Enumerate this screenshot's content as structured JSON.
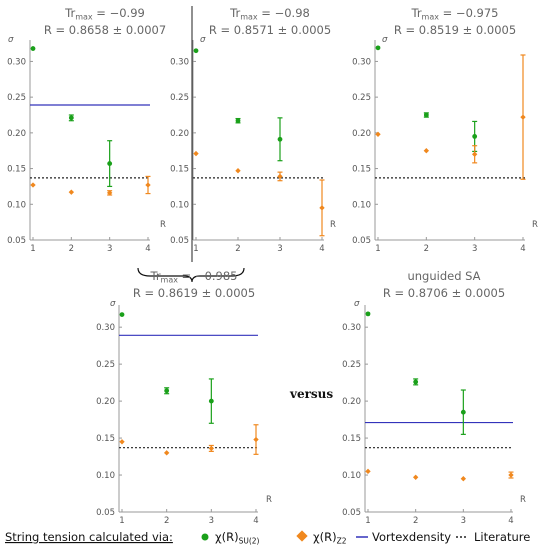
{
  "colors": {
    "su2": "#1aa01a",
    "z2": "#f0881e",
    "vortex": "#3333bb",
    "literature": "#222222",
    "axis": "#999999",
    "header": "#666666"
  },
  "versus_text": "versus",
  "legend": {
    "title": "String tension calculated via:",
    "su2_label": "χ(R)",
    "su2_sub": "SU(2)",
    "z2_label": "χ(R)",
    "z2_sub": "Z2",
    "vortex_label": "Vortexdensity",
    "literature_label": "Literature"
  },
  "chart_data": [
    {
      "type": "scatter",
      "header_tr": "Tr",
      "header_sub": "max",
      "header_value": " = −0.99",
      "header_r": "R = 0.8658 ± 0.0007",
      "ylabel": "σ",
      "xlabel": "R",
      "xlim": [
        1,
        4
      ],
      "ylim": [
        0.05,
        0.33
      ],
      "xticks": [
        "1",
        "2",
        "3",
        "4"
      ],
      "yticks": [
        "0.05",
        "0.10",
        "0.15",
        "0.20",
        "0.25",
        "0.30"
      ],
      "vortex": 0.239,
      "literature": 0.137,
      "series": [
        {
          "key": "su2",
          "points": [
            {
              "x": 1,
              "y": 0.318,
              "err": 0.001
            },
            {
              "x": 2,
              "y": 0.221,
              "err": 0.004
            },
            {
              "x": 3,
              "y": 0.157,
              "err": 0.032
            }
          ]
        },
        {
          "key": "z2",
          "points": [
            {
              "x": 1,
              "y": 0.127,
              "err": 0.001
            },
            {
              "x": 2,
              "y": 0.117,
              "err": 0.001
            },
            {
              "x": 3,
              "y": 0.116,
              "err": 0.003
            },
            {
              "x": 4,
              "y": 0.127,
              "err": 0.012
            }
          ]
        }
      ]
    },
    {
      "type": "scatter",
      "header_tr": "Tr",
      "header_sub": "max",
      "header_value": " = −0.98",
      "header_r": "R = 0.8571 ± 0.0005",
      "ylabel": "σ",
      "xlabel": "R",
      "xlim": [
        1,
        4
      ],
      "ylim": [
        0.05,
        0.33
      ],
      "xticks": [
        "1",
        "2",
        "3",
        "4"
      ],
      "yticks": [
        "0.05",
        "0.10",
        "0.15",
        "0.20",
        "0.25",
        "0.30"
      ],
      "vortex": null,
      "literature": 0.137,
      "series": [
        {
          "key": "su2",
          "points": [
            {
              "x": 1,
              "y": 0.315,
              "err": 0.001
            },
            {
              "x": 2,
              "y": 0.217,
              "err": 0.003
            },
            {
              "x": 3,
              "y": 0.191,
              "err": 0.03
            }
          ]
        },
        {
          "key": "z2",
          "points": [
            {
              "x": 1,
              "y": 0.171,
              "err": 0.001
            },
            {
              "x": 2,
              "y": 0.147,
              "err": 0.002
            },
            {
              "x": 3,
              "y": 0.139,
              "err": 0.006
            },
            {
              "x": 4,
              "y": 0.095,
              "err": 0.039
            }
          ]
        }
      ]
    },
    {
      "type": "scatter",
      "header_tr": "Tr",
      "header_sub": "max",
      "header_value": " = −0.975",
      "header_r": "R = 0.8519 ± 0.0005",
      "ylabel": "σ",
      "xlabel": "R",
      "xlim": [
        1,
        4
      ],
      "ylim": [
        0.05,
        0.33
      ],
      "xticks": [
        "1",
        "2",
        "3",
        "4"
      ],
      "yticks": [
        "0.05",
        "0.10",
        "0.15",
        "0.20",
        "0.25",
        "0.30"
      ],
      "vortex": null,
      "literature": 0.137,
      "series": [
        {
          "key": "su2",
          "points": [
            {
              "x": 1,
              "y": 0.319,
              "err": 0.001
            },
            {
              "x": 2,
              "y": 0.225,
              "err": 0.003
            },
            {
              "x": 3,
              "y": 0.195,
              "err": 0.021
            }
          ]
        },
        {
          "key": "z2",
          "points": [
            {
              "x": 1,
              "y": 0.198,
              "err": 0.001
            },
            {
              "x": 2,
              "y": 0.175,
              "err": 0.002
            },
            {
              "x": 3,
              "y": 0.17,
              "err": 0.012
            },
            {
              "x": 4,
              "y": 0.222,
              "err": 0.087
            }
          ]
        }
      ]
    },
    {
      "type": "scatter",
      "header_tr": "Tr",
      "header_sub": "max",
      "header_value": " = −0.985",
      "header_r": "R = 0.8619 ± 0.0005",
      "ylabel": "σ",
      "xlabel": "R",
      "xlim": [
        1,
        4
      ],
      "ylim": [
        0.05,
        0.33
      ],
      "xticks": [
        "1",
        "2",
        "3",
        "4"
      ],
      "yticks": [
        "0.05",
        "0.10",
        "0.15",
        "0.20",
        "0.25",
        "0.30"
      ],
      "vortex": 0.289,
      "literature": 0.137,
      "series": [
        {
          "key": "su2",
          "points": [
            {
              "x": 1,
              "y": 0.317,
              "err": 0.001
            },
            {
              "x": 2,
              "y": 0.214,
              "err": 0.004
            },
            {
              "x": 3,
              "y": 0.2,
              "err": 0.03
            }
          ]
        },
        {
          "key": "z2",
          "points": [
            {
              "x": 1,
              "y": 0.145,
              "err": 0.001
            },
            {
              "x": 2,
              "y": 0.13,
              "err": 0.001
            },
            {
              "x": 3,
              "y": 0.136,
              "err": 0.004
            },
            {
              "x": 4,
              "y": 0.148,
              "err": 0.02
            }
          ]
        }
      ]
    },
    {
      "type": "scatter",
      "header_title": "unguided SA",
      "header_r": "R = 0.8706 ± 0.0005",
      "ylabel": "σ",
      "xlabel": "R",
      "xlim": [
        1,
        4
      ],
      "ylim": [
        0.05,
        0.33
      ],
      "xticks": [
        "1",
        "2",
        "3",
        "4"
      ],
      "yticks": [
        "0.05",
        "0.10",
        "0.15",
        "0.20",
        "0.25",
        "0.30"
      ],
      "vortex": 0.171,
      "literature": 0.137,
      "series": [
        {
          "key": "su2",
          "points": [
            {
              "x": 1,
              "y": 0.318,
              "err": 0.001
            },
            {
              "x": 2,
              "y": 0.226,
              "err": 0.004
            },
            {
              "x": 3,
              "y": 0.185,
              "err": 0.03
            }
          ]
        },
        {
          "key": "z2",
          "points": [
            {
              "x": 1,
              "y": 0.105,
              "err": 0.001
            },
            {
              "x": 2,
              "y": 0.097,
              "err": 0.001
            },
            {
              "x": 3,
              "y": 0.095,
              "err": 0.001
            },
            {
              "x": 4,
              "y": 0.1,
              "err": 0.004
            }
          ]
        }
      ]
    }
  ]
}
